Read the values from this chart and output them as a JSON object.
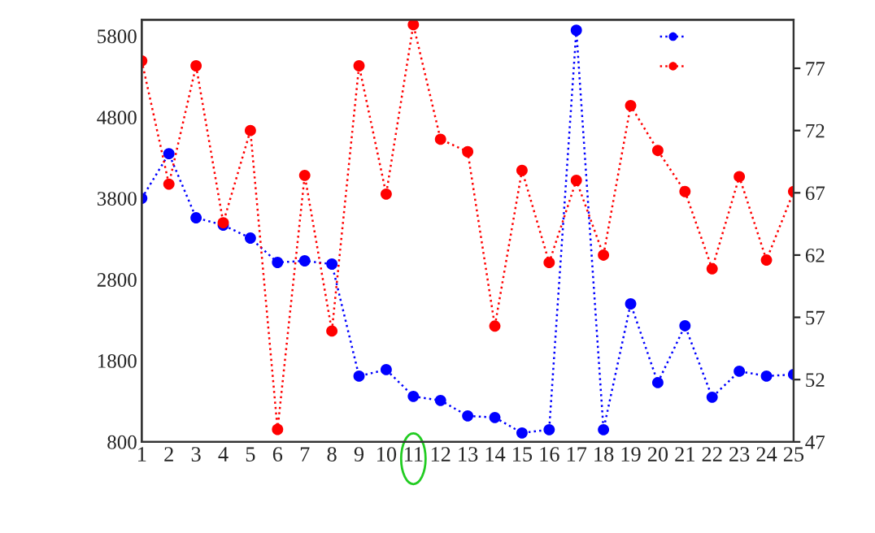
{
  "chart_data": {
    "type": "line",
    "x": [
      1,
      2,
      3,
      4,
      5,
      6,
      7,
      8,
      9,
      10,
      11,
      12,
      13,
      14,
      15,
      16,
      17,
      18,
      19,
      20,
      21,
      22,
      23,
      24,
      25
    ],
    "series": [
      {
        "color": "#0000ff",
        "values": [
          3800,
          4350,
          3560,
          3470,
          3310,
          3010,
          3030,
          2990,
          1610,
          1690,
          1360,
          1310,
          1120,
          1100,
          910,
          950,
          5870,
          950,
          2500,
          1530,
          2230,
          1350,
          1670,
          1610,
          1630
        ]
      },
      {
        "color": "#ff0000",
        "axis": "y2",
        "values": [
          77.6,
          67.7,
          77.2,
          64.6,
          72.0,
          48.0,
          68.4,
          55.9,
          77.2,
          66.9,
          80.5,
          71.3,
          70.3,
          56.3,
          68.8,
          61.4,
          68.0,
          62.0,
          74.0,
          70.4,
          67.1,
          60.9,
          68.3,
          61.6,
          67.1
        ]
      }
    ],
    "xlim": [
      1,
      25
    ],
    "xticks": [
      1,
      2,
      3,
      4,
      5,
      6,
      7,
      8,
      9,
      10,
      11,
      12,
      13,
      14,
      15,
      16,
      17,
      18,
      19,
      20,
      21,
      22,
      23,
      24,
      25
    ],
    "ylim": [
      800,
      6000
    ],
    "yticks": [
      800,
      1800,
      2800,
      3800,
      4800,
      5800
    ],
    "y2lim": [
      47,
      80.9
    ],
    "y2ticks": [
      47,
      52,
      57,
      62,
      67,
      72,
      77
    ],
    "marker": "circle",
    "line_style": "dotted",
    "grid": false
  }
}
